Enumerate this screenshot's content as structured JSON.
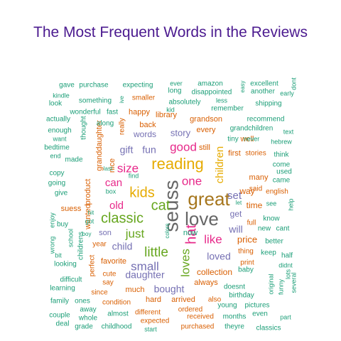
{
  "chart_data": {
    "type": "wordcloud",
    "title": "The Most Frequent Words in the Reviews",
    "color_groups": {
      "teal": "#1b9e77",
      "orange": "#d95f02",
      "purple": "#7570b3",
      "pink": "#e7298a",
      "green": "#66a61e",
      "gold": "#e6ab02",
      "brown": "#a6761d",
      "gray": "#666666"
    },
    "words": [
      {
        "text": "seuss",
        "color": "gray"
      },
      {
        "text": "great",
        "color": "brown"
      },
      {
        "text": "reading",
        "color": "gold"
      },
      {
        "text": "love",
        "color": "gray"
      },
      {
        "text": "kids",
        "color": "gold"
      },
      {
        "text": "classic",
        "color": "green"
      },
      {
        "text": "hat",
        "color": "pink"
      },
      {
        "text": "cat",
        "color": "green"
      },
      {
        "text": "loves",
        "color": "green"
      },
      {
        "text": "little",
        "color": "green"
      },
      {
        "text": "size",
        "color": "pink"
      },
      {
        "text": "good",
        "color": "pink"
      },
      {
        "text": "one",
        "color": "pink"
      },
      {
        "text": "just",
        "color": "green"
      },
      {
        "text": "children",
        "color": "gold"
      },
      {
        "text": "small",
        "color": "purple"
      },
      {
        "text": "like",
        "color": "pink"
      },
      {
        "text": "old",
        "color": "pink"
      },
      {
        "text": "can",
        "color": "pink"
      },
      {
        "text": "daughter",
        "color": "purple"
      },
      {
        "text": "bought",
        "color": "purple"
      },
      {
        "text": "set",
        "color": "purple"
      },
      {
        "text": "loved",
        "color": "purple"
      },
      {
        "text": "child",
        "color": "purple"
      },
      {
        "text": "will",
        "color": "purple"
      },
      {
        "text": "story",
        "color": "purple"
      },
      {
        "text": "gift",
        "color": "purple"
      },
      {
        "text": "fun",
        "color": "purple"
      },
      {
        "text": "price",
        "color": "orange"
      },
      {
        "text": "collection",
        "color": "orange"
      },
      {
        "text": "words",
        "color": "purple"
      },
      {
        "text": "get",
        "color": "purple"
      },
      {
        "text": "way",
        "color": "orange"
      },
      {
        "text": "time",
        "color": "orange"
      },
      {
        "text": "son",
        "color": "purple"
      },
      {
        "text": "favorite",
        "color": "orange"
      },
      {
        "text": "granddaughter",
        "color": "orange"
      },
      {
        "text": "product",
        "color": "orange"
      },
      {
        "text": "wanted",
        "color": "orange"
      },
      {
        "text": "nice",
        "color": "orange"
      },
      {
        "text": "happy",
        "color": "orange"
      },
      {
        "text": "library",
        "color": "orange"
      },
      {
        "text": "grandson",
        "color": "orange"
      },
      {
        "text": "recommend",
        "color": "teal"
      },
      {
        "text": "grandchildren",
        "color": "teal"
      },
      {
        "text": "every",
        "color": "orange"
      },
      {
        "text": "back",
        "color": "orange"
      },
      {
        "text": "still",
        "color": "orange"
      },
      {
        "text": "well",
        "color": "orange"
      },
      {
        "text": "first",
        "color": "orange"
      },
      {
        "text": "stories",
        "color": "orange"
      },
      {
        "text": "many",
        "color": "orange"
      },
      {
        "text": "said",
        "color": "orange"
      },
      {
        "text": "english",
        "color": "orange"
      },
      {
        "text": "full",
        "color": "orange"
      },
      {
        "text": "thing",
        "color": "orange"
      },
      {
        "text": "print",
        "color": "orange"
      },
      {
        "text": "always",
        "color": "orange"
      },
      {
        "text": "much",
        "color": "orange"
      },
      {
        "text": "hard",
        "color": "orange"
      },
      {
        "text": "arrived",
        "color": "orange"
      },
      {
        "text": "also",
        "color": "orange"
      },
      {
        "text": "cute",
        "color": "orange"
      },
      {
        "text": "year",
        "color": "orange"
      },
      {
        "text": "perfect",
        "color": "orange"
      },
      {
        "text": "say",
        "color": "orange"
      },
      {
        "text": "since",
        "color": "orange"
      },
      {
        "text": "condition",
        "color": "orange"
      },
      {
        "text": "different",
        "color": "orange"
      },
      {
        "text": "expected",
        "color": "orange"
      },
      {
        "text": "ordered",
        "color": "orange"
      },
      {
        "text": "received",
        "color": "orange"
      },
      {
        "text": "purchased",
        "color": "orange"
      },
      {
        "text": "suess",
        "color": "orange"
      },
      {
        "text": "buy",
        "color": "teal"
      },
      {
        "text": "got",
        "color": "teal"
      },
      {
        "text": "boy",
        "color": "teal"
      },
      {
        "text": "hit",
        "color": "teal"
      },
      {
        "text": "childrens",
        "color": "teal"
      },
      {
        "text": "school",
        "color": "teal"
      },
      {
        "text": "bit",
        "color": "teal"
      },
      {
        "text": "looking",
        "color": "teal"
      },
      {
        "text": "difficult",
        "color": "teal"
      },
      {
        "text": "learning",
        "color": "teal"
      },
      {
        "text": "family",
        "color": "teal"
      },
      {
        "text": "couple",
        "color": "teal"
      },
      {
        "text": "deal",
        "color": "teal"
      },
      {
        "text": "grade",
        "color": "teal"
      },
      {
        "text": "childhood",
        "color": "teal"
      },
      {
        "text": "start",
        "color": "teal"
      },
      {
        "text": "whole",
        "color": "teal"
      },
      {
        "text": "ones",
        "color": "teal"
      },
      {
        "text": "away",
        "color": "teal"
      },
      {
        "text": "almost",
        "color": "teal"
      },
      {
        "text": "months",
        "color": "teal"
      },
      {
        "text": "theyre",
        "color": "teal"
      },
      {
        "text": "classics",
        "color": "teal"
      },
      {
        "text": "part",
        "color": "teal"
      },
      {
        "text": "even",
        "color": "teal"
      },
      {
        "text": "pictures",
        "color": "teal"
      },
      {
        "text": "young",
        "color": "teal"
      },
      {
        "text": "birthday",
        "color": "teal"
      },
      {
        "text": "doesnt",
        "color": "teal"
      },
      {
        "text": "baby",
        "color": "teal"
      },
      {
        "text": "keep",
        "color": "teal"
      },
      {
        "text": "original",
        "color": "teal"
      },
      {
        "text": "funny",
        "color": "teal"
      },
      {
        "text": "lots",
        "color": "teal"
      },
      {
        "text": "several",
        "color": "teal"
      },
      {
        "text": "half",
        "color": "teal"
      },
      {
        "text": "didnt",
        "color": "teal"
      },
      {
        "text": "better",
        "color": "teal"
      },
      {
        "text": "new",
        "color": "teal"
      },
      {
        "text": "cant",
        "color": "teal"
      },
      {
        "text": "know",
        "color": "teal"
      },
      {
        "text": "help",
        "color": "teal"
      },
      {
        "text": "came",
        "color": "teal"
      },
      {
        "text": "used",
        "color": "teal"
      },
      {
        "text": "come",
        "color": "teal"
      },
      {
        "text": "think",
        "color": "teal"
      },
      {
        "text": "hebrew",
        "color": "teal"
      },
      {
        "text": "text",
        "color": "teal"
      },
      {
        "text": "never",
        "color": "teal"
      },
      {
        "text": "tiny",
        "color": "teal"
      },
      {
        "text": "see",
        "color": "teal"
      },
      {
        "text": "let",
        "color": "teal"
      },
      {
        "text": "now",
        "color": "teal"
      },
      {
        "text": "colors",
        "color": "teal"
      },
      {
        "text": "box",
        "color": "teal"
      },
      {
        "text": "find",
        "color": "teal"
      },
      {
        "text": "last",
        "color": "teal"
      },
      {
        "text": "made",
        "color": "teal"
      },
      {
        "text": "end",
        "color": "teal"
      },
      {
        "text": "copy",
        "color": "teal"
      },
      {
        "text": "going",
        "color": "teal"
      },
      {
        "text": "give",
        "color": "teal"
      },
      {
        "text": "enjoy",
        "color": "teal"
      },
      {
        "text": "wrong",
        "color": "teal"
      },
      {
        "text": "gave",
        "color": "teal"
      },
      {
        "text": "purchase",
        "color": "teal"
      },
      {
        "text": "expecting",
        "color": "teal"
      },
      {
        "text": "kindle",
        "color": "teal"
      },
      {
        "text": "look",
        "color": "teal"
      },
      {
        "text": "actually",
        "color": "teal"
      },
      {
        "text": "enough",
        "color": "teal"
      },
      {
        "text": "bedtime",
        "color": "teal"
      },
      {
        "text": "want",
        "color": "teal"
      },
      {
        "text": "something",
        "color": "teal"
      },
      {
        "text": "wonderful",
        "color": "teal"
      },
      {
        "text": "fast",
        "color": "teal"
      },
      {
        "text": "along",
        "color": "teal"
      },
      {
        "text": "thought",
        "color": "teal"
      },
      {
        "text": "really",
        "color": "orange"
      },
      {
        "text": "ive",
        "color": "teal"
      },
      {
        "text": "smaller",
        "color": "orange"
      },
      {
        "text": "ever",
        "color": "teal"
      },
      {
        "text": "long",
        "color": "teal"
      },
      {
        "text": "amazon",
        "color": "teal"
      },
      {
        "text": "disappointed",
        "color": "teal"
      },
      {
        "text": "absolutely",
        "color": "teal"
      },
      {
        "text": "kid",
        "color": "teal"
      },
      {
        "text": "less",
        "color": "teal"
      },
      {
        "text": "remember",
        "color": "teal"
      },
      {
        "text": "easy",
        "color": "teal"
      },
      {
        "text": "excellent",
        "color": "teal"
      },
      {
        "text": "another",
        "color": "teal"
      },
      {
        "text": "early",
        "color": "teal"
      },
      {
        "text": "dont",
        "color": "teal"
      },
      {
        "text": "shipping",
        "color": "teal"
      }
    ]
  }
}
